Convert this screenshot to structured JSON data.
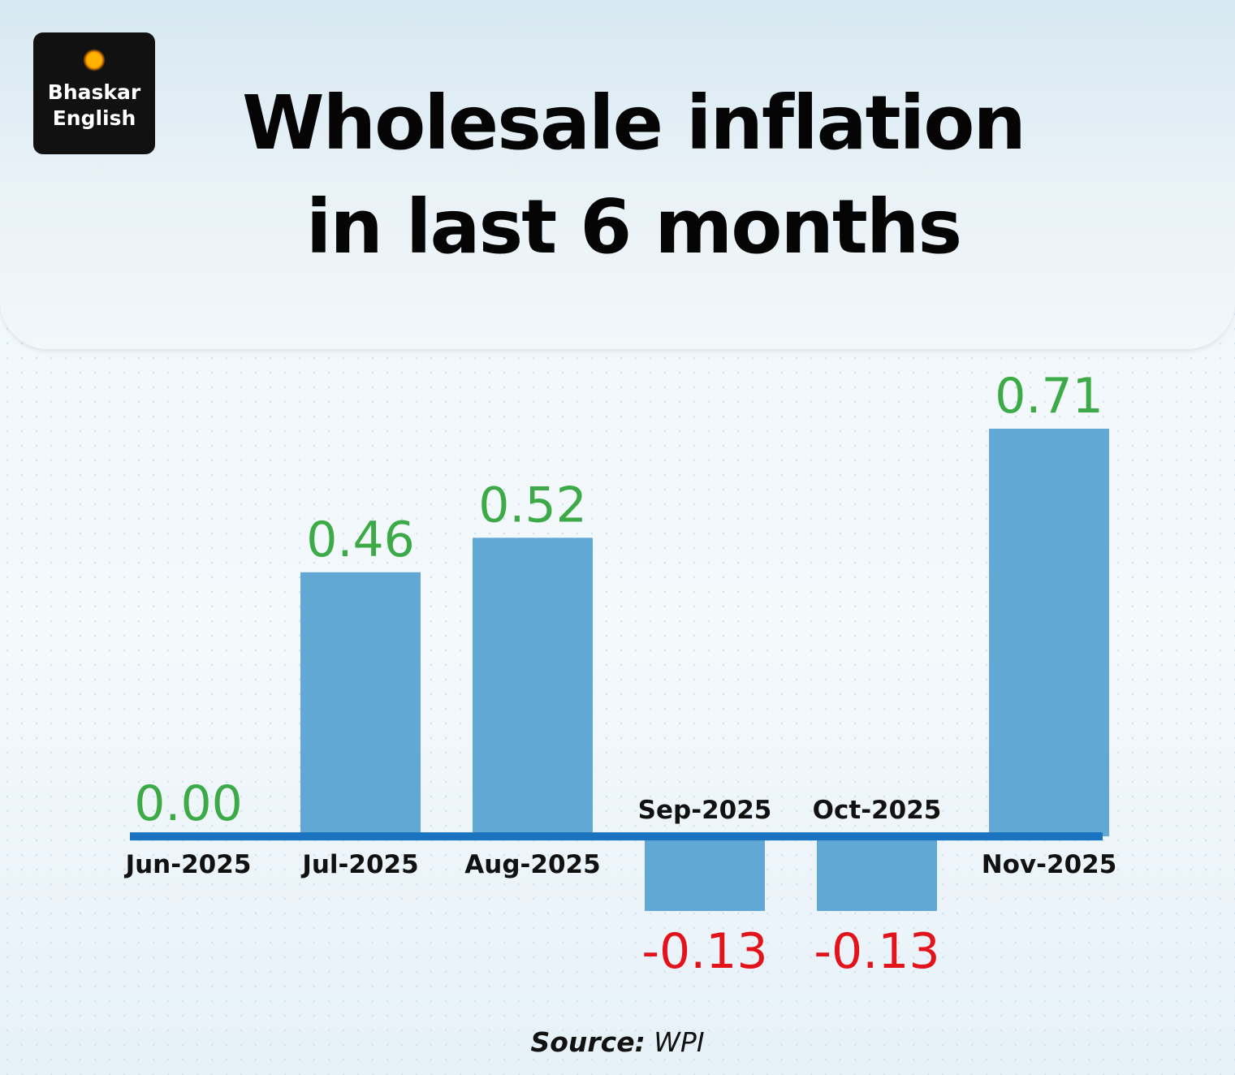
{
  "brand": {
    "line1": "Bhaskar",
    "line2": "English"
  },
  "chart_data": {
    "type": "bar",
    "title": "Wholesale inflation\nin last 6 months",
    "categories": [
      "Jun-2025",
      "Jul-2025",
      "Aug-2025",
      "Sep-2025",
      "Oct-2025",
      "Nov-2025"
    ],
    "values": [
      0,
      0.46,
      0.52,
      -0.13,
      -0.13,
      0.71
    ],
    "value_labels": [
      "0.00",
      "0.46",
      "0.52",
      "-0.13",
      "-0.13",
      "0.71"
    ],
    "color": "#62a8d4",
    "axis_color": "#1a73c1",
    "positive_label_color": "#3daa48",
    "negative_label_color": "#e3131b",
    "source_label": "Source:",
    "source": "WPI"
  }
}
